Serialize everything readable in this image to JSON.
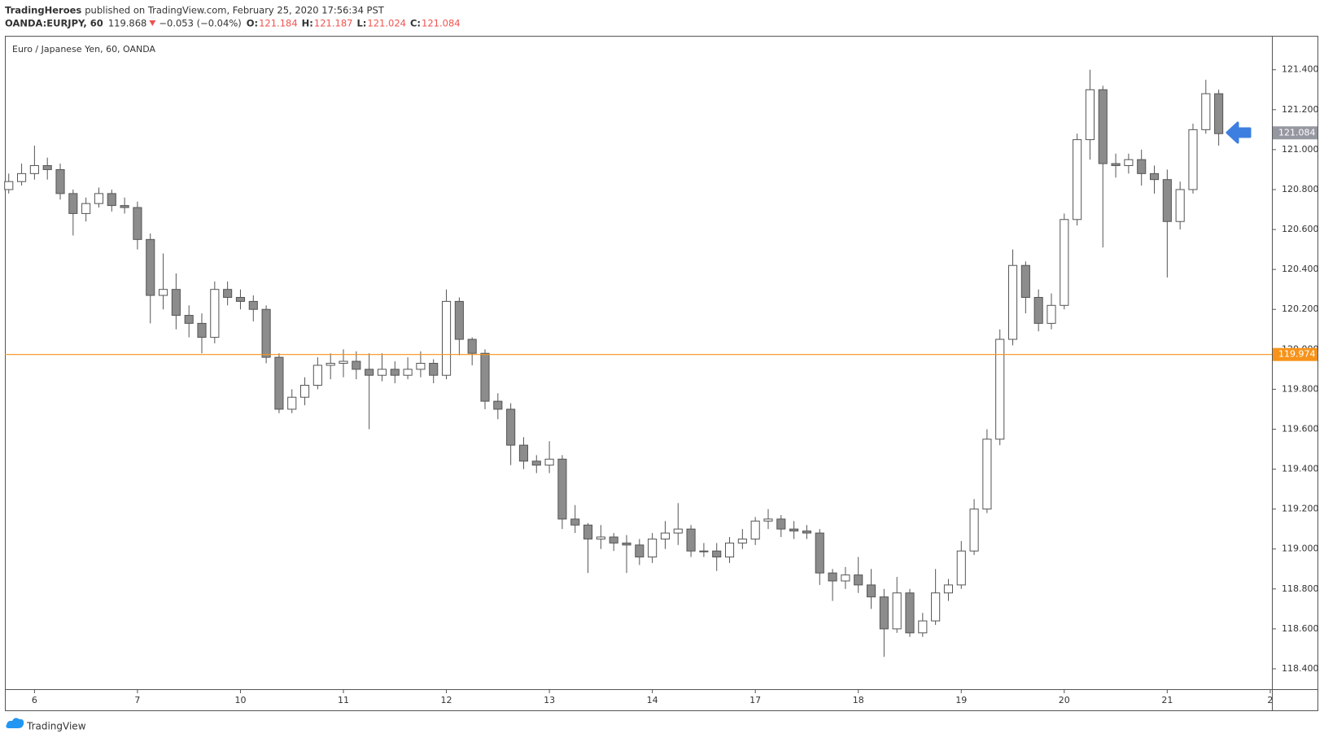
{
  "header": {
    "publisher": "TradingHeroes",
    "published": "published on TradingView.com, February 25, 2020 17:56:34 PST",
    "symbol": "OANDA:EURJPY, 60",
    "last": "119.868",
    "change": "−0.053 (−0.04%)",
    "ohlc": [
      {
        "label": "O:",
        "value": "121.184"
      },
      {
        "label": "H:",
        "value": "121.187"
      },
      {
        "label": "L:",
        "value": "121.024"
      },
      {
        "label": "C:",
        "value": "121.084"
      }
    ]
  },
  "chart_data": {
    "type": "candlestick",
    "title": "Euro / Japanese Yen, 60, OANDA",
    "x": [
      -6,
      -3,
      0,
      3,
      6,
      9,
      12,
      15,
      18,
      21,
      24,
      27,
      30,
      33,
      36,
      39,
      42,
      45,
      48,
      51,
      54,
      57,
      60,
      63,
      66,
      69,
      72,
      75,
      78,
      81,
      84,
      87,
      90,
      93,
      96,
      99,
      102,
      105,
      108,
      111,
      114,
      117,
      120,
      123,
      126,
      129,
      132,
      135,
      138,
      141,
      144,
      147,
      150,
      153,
      156,
      159,
      162,
      165,
      168,
      171,
      174,
      177,
      180,
      183,
      186,
      189,
      192,
      195,
      198,
      201,
      204,
      207,
      210,
      213,
      216,
      219,
      222,
      225,
      228,
      231,
      234,
      237,
      240,
      243,
      246,
      249,
      252,
      255,
      258,
      261,
      264,
      267,
      270,
      273,
      276
    ],
    "open": [
      120.8,
      120.84,
      120.88,
      120.92,
      120.9,
      120.78,
      120.68,
      120.73,
      120.78,
      120.72,
      120.71,
      120.55,
      120.27,
      120.3,
      120.17,
      120.13,
      120.06,
      120.3,
      120.26,
      120.24,
      120.2,
      119.96,
      119.7,
      119.76,
      119.82,
      119.92,
      119.93,
      119.94,
      119.9,
      119.87,
      119.9,
      119.87,
      119.9,
      119.93,
      119.87,
      120.24,
      120.05,
      119.98,
      119.74,
      119.7,
      119.52,
      119.44,
      119.42,
      119.45,
      119.15,
      119.12,
      119.05,
      119.06,
      119.03,
      119.02,
      118.96,
      119.05,
      119.08,
      119.1,
      118.99,
      118.99,
      118.96,
      119.03,
      119.05,
      119.14,
      119.15,
      119.1,
      119.09,
      119.08,
      118.88,
      118.84,
      118.87,
      118.82,
      118.76,
      118.6,
      118.78,
      118.58,
      118.64,
      118.78,
      118.82,
      118.99,
      119.2,
      119.55,
      120.05,
      120.42,
      120.26,
      120.13,
      120.22,
      120.65,
      121.05,
      121.3,
      120.93,
      120.92,
      120.95,
      120.88,
      120.85,
      120.64,
      120.8,
      121.1,
      121.28
    ],
    "high": [
      120.88,
      120.93,
      121.02,
      120.96,
      120.93,
      120.8,
      120.76,
      120.81,
      120.8,
      120.76,
      120.74,
      120.58,
      120.48,
      120.38,
      120.22,
      120.18,
      120.34,
      120.34,
      120.3,
      120.27,
      120.22,
      119.98,
      119.8,
      119.86,
      119.96,
      119.98,
      120.0,
      119.99,
      119.98,
      119.98,
      119.94,
      119.96,
      119.99,
      119.95,
      120.3,
      120.26,
      120.06,
      120.0,
      119.78,
      119.73,
      119.56,
      119.47,
      119.54,
      119.47,
      119.22,
      119.13,
      119.12,
      119.08,
      119.07,
      119.05,
      119.08,
      119.14,
      119.23,
      119.12,
      119.03,
      119.03,
      119.06,
      119.1,
      119.16,
      119.2,
      119.17,
      119.14,
      119.12,
      119.1,
      118.9,
      118.91,
      118.96,
      118.9,
      118.8,
      118.86,
      118.8,
      118.68,
      118.9,
      118.85,
      119.04,
      119.25,
      119.6,
      120.1,
      120.5,
      120.44,
      120.3,
      120.28,
      120.68,
      121.08,
      121.4,
      121.32,
      120.98,
      120.98,
      121.0,
      120.92,
      120.9,
      120.84,
      121.13,
      121.35,
      121.3
    ],
    "low": [
      120.78,
      120.82,
      120.85,
      120.85,
      120.75,
      120.57,
      120.64,
      120.71,
      120.69,
      120.68,
      120.5,
      120.13,
      120.2,
      120.1,
      120.06,
      119.98,
      120.03,
      120.22,
      120.2,
      120.14,
      119.93,
      119.68,
      119.68,
      119.72,
      119.8,
      119.85,
      119.86,
      119.85,
      119.6,
      119.84,
      119.83,
      119.85,
      119.86,
      119.83,
      119.85,
      119.97,
      119.92,
      119.7,
      119.65,
      119.42,
      119.4,
      119.38,
      119.38,
      119.1,
      119.08,
      118.88,
      119.0,
      118.99,
      118.88,
      118.92,
      118.93,
      119.0,
      119.02,
      118.96,
      118.96,
      118.89,
      118.93,
      119.0,
      119.02,
      119.1,
      119.06,
      119.05,
      119.05,
      118.82,
      118.74,
      118.8,
      118.78,
      118.7,
      118.46,
      118.58,
      118.56,
      118.56,
      118.62,
      118.74,
      118.8,
      118.97,
      119.18,
      119.52,
      120.02,
      120.18,
      120.09,
      120.1,
      120.2,
      120.62,
      120.95,
      120.51,
      120.86,
      120.88,
      120.82,
      120.78,
      120.36,
      120.6,
      120.78,
      121.08,
      121.02
    ],
    "close": [
      120.84,
      120.88,
      120.92,
      120.9,
      120.78,
      120.68,
      120.73,
      120.78,
      120.72,
      120.71,
      120.55,
      120.27,
      120.3,
      120.17,
      120.13,
      120.06,
      120.3,
      120.26,
      120.24,
      120.2,
      119.96,
      119.7,
      119.76,
      119.82,
      119.92,
      119.93,
      119.94,
      119.9,
      119.87,
      119.9,
      119.87,
      119.9,
      119.93,
      119.87,
      120.24,
      120.05,
      119.98,
      119.74,
      119.7,
      119.52,
      119.44,
      119.42,
      119.45,
      119.15,
      119.12,
      119.05,
      119.06,
      119.03,
      119.02,
      118.96,
      119.05,
      119.08,
      119.1,
      118.99,
      118.99,
      118.96,
      119.03,
      119.05,
      119.14,
      119.15,
      119.1,
      119.09,
      119.08,
      118.88,
      118.84,
      118.87,
      118.82,
      118.76,
      118.6,
      118.78,
      118.58,
      118.64,
      118.78,
      118.82,
      118.99,
      119.2,
      119.55,
      120.05,
      120.42,
      120.26,
      120.13,
      120.22,
      120.65,
      121.05,
      121.3,
      120.93,
      120.92,
      120.95,
      120.88,
      120.85,
      120.64,
      120.8,
      121.1,
      121.28,
      121.08
    ],
    "up_color": "#ffffff",
    "down_color": "#8c8c8c",
    "wick_color": "#555555",
    "xlim": [
      -6.9,
      288.4
    ],
    "xticks": [
      {
        "value": 0,
        "label": "6"
      },
      {
        "value": 24,
        "label": "7"
      },
      {
        "value": 48,
        "label": "10"
      },
      {
        "value": 72,
        "label": "11"
      },
      {
        "value": 96,
        "label": "12"
      },
      {
        "value": 120,
        "label": "13"
      },
      {
        "value": 144,
        "label": "14"
      },
      {
        "value": 168,
        "label": "17"
      },
      {
        "value": 192,
        "label": "18"
      },
      {
        "value": 216,
        "label": "19"
      },
      {
        "value": 240,
        "label": "20"
      },
      {
        "value": 264,
        "label": "21"
      },
      {
        "value": 288,
        "label": "2"
      }
    ],
    "ylim": [
      118.298,
      121.57
    ],
    "yticks": [
      {
        "value": 118.4,
        "label": "118.400"
      },
      {
        "value": 118.6,
        "label": "118.600"
      },
      {
        "value": 118.8,
        "label": "118.800"
      },
      {
        "value": 119.0,
        "label": "119.000"
      },
      {
        "value": 119.2,
        "label": "119.200"
      },
      {
        "value": 119.4,
        "label": "119.400"
      },
      {
        "value": 119.6,
        "label": "119.600"
      },
      {
        "value": 119.8,
        "label": "119.800"
      },
      {
        "value": 120.0,
        "label": "120.000"
      },
      {
        "value": 120.2,
        "label": "120.200"
      },
      {
        "value": 120.4,
        "label": "120.400"
      },
      {
        "value": 120.6,
        "label": "120.600"
      },
      {
        "value": 120.8,
        "label": "120.800"
      },
      {
        "value": 121.0,
        "label": "121.000"
      },
      {
        "value": 121.2,
        "label": "121.200"
      },
      {
        "value": 121.4,
        "label": "121.400"
      }
    ],
    "grid": false,
    "price_line": 119.974,
    "price_line_color": "#f7931a",
    "last_price": 121.084,
    "last_price_color": "#9598a1"
  },
  "footer": {
    "brand": "TradingView"
  }
}
